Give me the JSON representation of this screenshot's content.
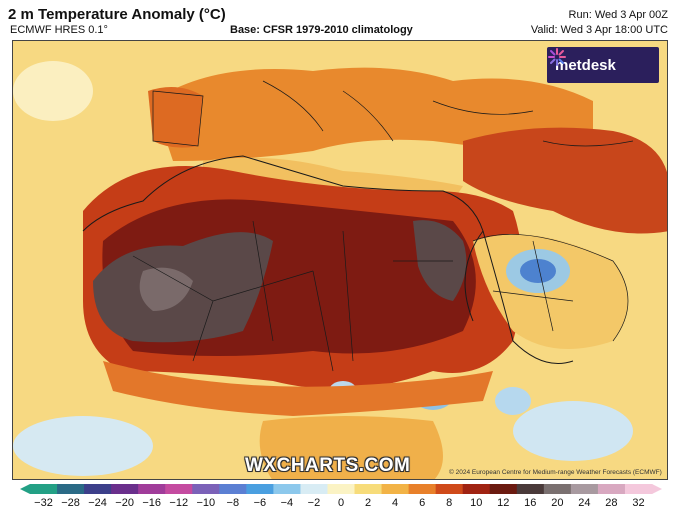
{
  "header": {
    "title": "2 m Temperature Anomaly (°C)",
    "model": "ECMWF HRES 0.1°",
    "base": "Base: CFSR 1979-2010 climatology",
    "run": "Run: Wed 3 Apr 00Z",
    "valid": "Valid: Wed 3 Apr 18:00 UTC"
  },
  "brand": {
    "name": "metdesk",
    "icon": "starburst-logo-icon"
  },
  "watermark": "WXCHARTS.COM",
  "copyright": "© 2024 European Centre for Medium-range Weather Forecasts (ECMWF)",
  "colorbar": {
    "ticks": [
      "−32",
      "−28",
      "−24",
      "−20",
      "−16",
      "−12",
      "−10",
      "−8",
      "−6",
      "−4",
      "−2",
      "0",
      "2",
      "4",
      "6",
      "8",
      "10",
      "12",
      "16",
      "20",
      "24",
      "28",
      "32"
    ],
    "colors": [
      "#23a085",
      "#2a6a86",
      "#3c3f8a",
      "#6a2f8c",
      "#a03c9a",
      "#c44ba0",
      "#7b61b8",
      "#5b7fd3",
      "#4a9fe0",
      "#8cc8ec",
      "#d8ecf4",
      "#fbf3c4",
      "#f7dc7a",
      "#f2b346",
      "#e8802a",
      "#cf4a1a",
      "#a02312",
      "#6b1a10",
      "#4a3a3a",
      "#7a7070",
      "#a89aa0",
      "#d8a8c0",
      "#f4c8dc"
    ],
    "arrows": [
      "left-arrow-icon",
      "right-arrow-icon"
    ]
  }
}
